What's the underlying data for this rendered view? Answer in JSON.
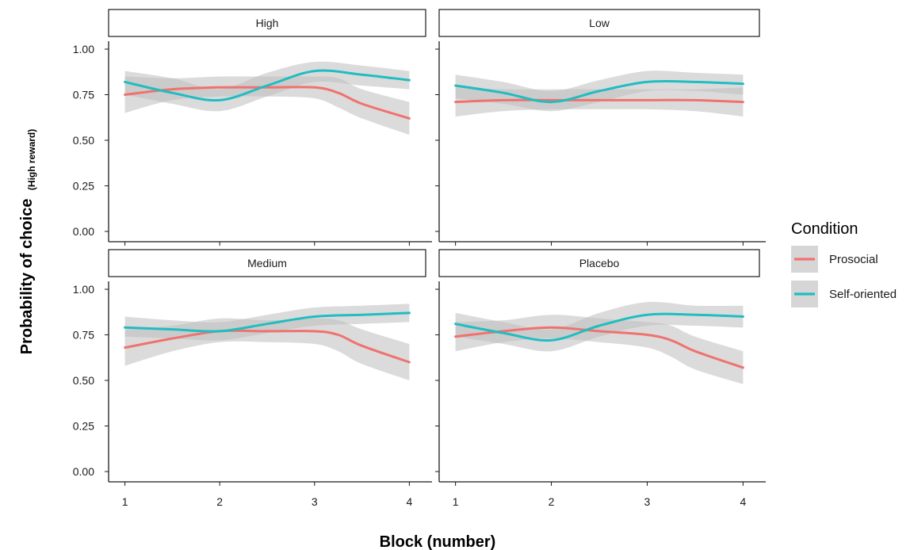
{
  "chart_data": {
    "type": "line",
    "facet_titles": [
      "High",
      "Low",
      "Medium",
      "Placebo"
    ],
    "xlabel": "Block (number)",
    "ylabel": "Probability of choice",
    "ylabel_subscript": "(High reward)",
    "x_ticks": [
      1,
      2,
      3,
      4
    ],
    "y_ticks": [
      "0.00",
      "0.25",
      "0.50",
      "0.75",
      "1.00"
    ],
    "xlim": [
      0.97,
      4.03
    ],
    "ylim": [
      0,
      1.0
    ],
    "legend": {
      "title": "Condition",
      "position": "right",
      "entries": [
        "Prosocial",
        "Self-oriented"
      ]
    },
    "colors": {
      "Prosocial": "#f0726f",
      "Self-oriented": "#20bdc1",
      "ribbon": "#bdbdbd",
      "ribbon_overlap": "#a9a9a9"
    },
    "panels": [
      {
        "facet": "High",
        "series": [
          {
            "name": "Prosocial",
            "x": [
              1,
              1.5,
              2,
              2.5,
              3,
              3.25,
              3.5,
              4
            ],
            "y": [
              0.75,
              0.78,
              0.79,
              0.79,
              0.79,
              0.76,
              0.7,
              0.62
            ],
            "lower": [
              0.65,
              0.72,
              0.74,
              0.74,
              0.73,
              0.68,
              0.62,
              0.53
            ],
            "upper": [
              0.85,
              0.84,
              0.85,
              0.85,
              0.85,
              0.84,
              0.78,
              0.71
            ]
          },
          {
            "name": "Self-oriented",
            "x": [
              1,
              1.5,
              2,
              2.5,
              3,
              3.5,
              4
            ],
            "y": [
              0.82,
              0.76,
              0.72,
              0.8,
              0.88,
              0.86,
              0.83
            ],
            "lower": [
              0.75,
              0.7,
              0.66,
              0.74,
              0.82,
              0.8,
              0.78
            ],
            "upper": [
              0.88,
              0.84,
              0.78,
              0.87,
              0.93,
              0.91,
              0.88
            ]
          }
        ]
      },
      {
        "facet": "Low",
        "series": [
          {
            "name": "Prosocial",
            "x": [
              1,
              1.5,
              2,
              2.5,
              3,
              3.5,
              4
            ],
            "y": [
              0.71,
              0.72,
              0.72,
              0.72,
              0.72,
              0.72,
              0.71
            ],
            "lower": [
              0.63,
              0.66,
              0.67,
              0.67,
              0.67,
              0.66,
              0.63
            ],
            "upper": [
              0.79,
              0.78,
              0.78,
              0.78,
              0.78,
              0.78,
              0.79
            ]
          },
          {
            "name": "Self-oriented",
            "x": [
              1,
              1.5,
              2,
              2.5,
              3,
              3.5,
              4
            ],
            "y": [
              0.8,
              0.76,
              0.71,
              0.77,
              0.82,
              0.82,
              0.81
            ],
            "lower": [
              0.73,
              0.7,
              0.66,
              0.71,
              0.77,
              0.77,
              0.75
            ],
            "upper": [
              0.86,
              0.82,
              0.77,
              0.83,
              0.88,
              0.87,
              0.86
            ]
          }
        ]
      },
      {
        "facet": "Medium",
        "series": [
          {
            "name": "Prosocial",
            "x": [
              1,
              1.5,
              2,
              2.5,
              3,
              3.25,
              3.5,
              4
            ],
            "y": [
              0.68,
              0.73,
              0.77,
              0.77,
              0.77,
              0.75,
              0.69,
              0.6
            ],
            "lower": [
              0.58,
              0.66,
              0.71,
              0.71,
              0.7,
              0.66,
              0.59,
              0.5
            ],
            "upper": [
              0.78,
              0.8,
              0.84,
              0.83,
              0.84,
              0.83,
              0.78,
              0.7
            ]
          },
          {
            "name": "Self-oriented",
            "x": [
              1,
              1.5,
              2,
              2.5,
              3,
              3.5,
              4
            ],
            "y": [
              0.79,
              0.78,
              0.77,
              0.81,
              0.85,
              0.86,
              0.87
            ],
            "lower": [
              0.74,
              0.73,
              0.72,
              0.76,
              0.8,
              0.81,
              0.82
            ],
            "upper": [
              0.85,
              0.83,
              0.82,
              0.86,
              0.9,
              0.91,
              0.92
            ]
          }
        ]
      },
      {
        "facet": "Placebo",
        "series": [
          {
            "name": "Prosocial",
            "x": [
              1,
              1.5,
              2,
              2.5,
              3,
              3.25,
              3.5,
              4
            ],
            "y": [
              0.74,
              0.77,
              0.79,
              0.77,
              0.75,
              0.72,
              0.66,
              0.57
            ],
            "lower": [
              0.66,
              0.71,
              0.73,
              0.71,
              0.68,
              0.63,
              0.56,
              0.48
            ],
            "upper": [
              0.82,
              0.83,
              0.86,
              0.84,
              0.82,
              0.8,
              0.74,
              0.66
            ]
          },
          {
            "name": "Self-oriented",
            "x": [
              1,
              1.5,
              2,
              2.5,
              3,
              3.5,
              4
            ],
            "y": [
              0.81,
              0.76,
              0.72,
              0.8,
              0.86,
              0.86,
              0.85
            ],
            "lower": [
              0.74,
              0.7,
              0.66,
              0.74,
              0.8,
              0.8,
              0.79
            ],
            "upper": [
              0.87,
              0.82,
              0.78,
              0.87,
              0.93,
              0.91,
              0.91
            ]
          }
        ]
      }
    ]
  }
}
